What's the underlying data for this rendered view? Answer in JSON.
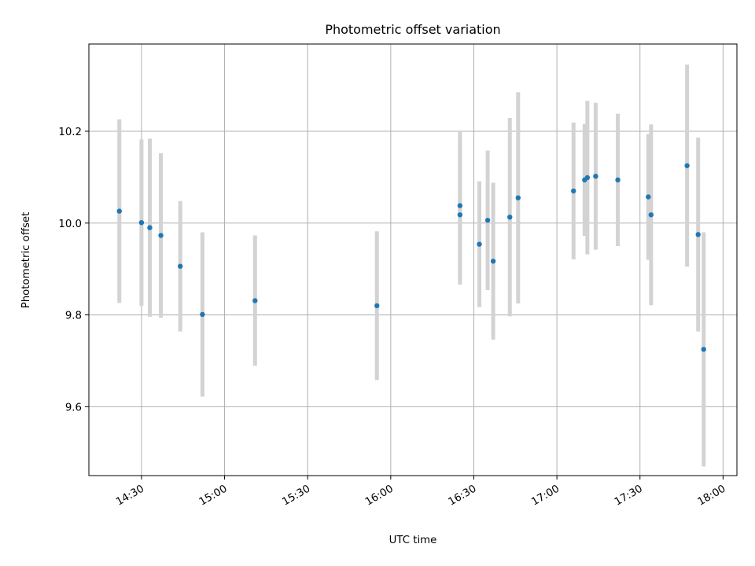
{
  "chart_data": {
    "type": "scatter",
    "title": "Photometric offset variation",
    "xlabel": "UTC time",
    "ylabel": "Photometric offset",
    "x_scale": "time",
    "xlim": [
      "14:11",
      "18:05"
    ],
    "ylim": [
      9.45,
      10.39
    ],
    "x_ticks": [
      "14:30",
      "15:00",
      "15:30",
      "16:00",
      "16:30",
      "17:00",
      "17:30",
      "18:00"
    ],
    "y_ticks": [
      9.6,
      9.8,
      10.0,
      10.2
    ],
    "y_tick_labels": [
      "9.6",
      "9.8",
      "10.0",
      "10.2"
    ],
    "grid": true,
    "marker_color": "#1f77b4",
    "errorbar_color": "#d3d3d3",
    "series": [
      {
        "points": [
          {
            "x": "14:22",
            "y": 10.026,
            "err": 0.2
          },
          {
            "x": "14:30",
            "y": 10.001,
            "err": 0.181
          },
          {
            "x": "14:33",
            "y": 9.99,
            "err": 0.194
          },
          {
            "x": "14:37",
            "y": 9.973,
            "err": 0.179
          },
          {
            "x": "14:44",
            "y": 9.906,
            "err": 0.142
          },
          {
            "x": "14:52",
            "y": 9.801,
            "err": 0.179
          },
          {
            "x": "15:11",
            "y": 9.831,
            "err": 0.142
          },
          {
            "x": "15:55",
            "y": 9.82,
            "err": 0.162
          },
          {
            "x": "16:25",
            "y": 10.038,
            "err": 0.162
          },
          {
            "x": "16:25",
            "y": 10.018,
            "err": 0.152
          },
          {
            "x": "16:32",
            "y": 9.954,
            "err": 0.137
          },
          {
            "x": "16:35",
            "y": 10.006,
            "err": 0.152
          },
          {
            "x": "16:37",
            "y": 9.917,
            "err": 0.171
          },
          {
            "x": "16:43",
            "y": 10.013,
            "err": 0.216
          },
          {
            "x": "16:46",
            "y": 10.055,
            "err": 0.23
          },
          {
            "x": "17:06",
            "y": 10.07,
            "err": 0.149
          },
          {
            "x": "17:10",
            "y": 10.094,
            "err": 0.122
          },
          {
            "x": "17:11",
            "y": 10.099,
            "err": 0.167
          },
          {
            "x": "17:14",
            "y": 10.102,
            "err": 0.16
          },
          {
            "x": "17:22",
            "y": 10.094,
            "err": 0.144
          },
          {
            "x": "17:33",
            "y": 10.057,
            "err": 0.137
          },
          {
            "x": "17:34",
            "y": 10.018,
            "err": 0.197
          },
          {
            "x": "17:47",
            "y": 10.125,
            "err": 0.22
          },
          {
            "x": "17:51",
            "y": 9.975,
            "err": 0.211
          },
          {
            "x": "17:53",
            "y": 9.725,
            "err": 0.255
          }
        ]
      }
    ]
  }
}
